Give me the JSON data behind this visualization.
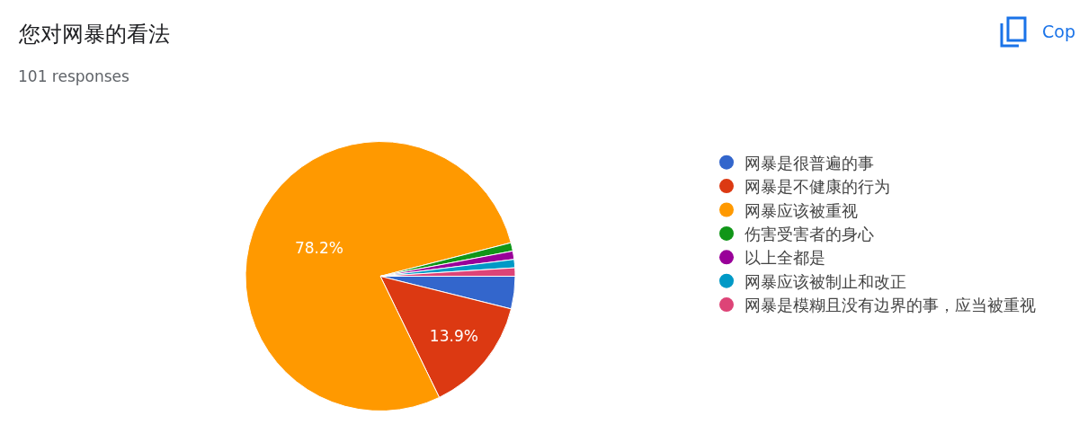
{
  "chart_data": {
    "type": "pie",
    "title": "您对网暴的看法",
    "subtitle": "101 responses",
    "categories": [
      "网暴是很普遍的事",
      "网暴是不健康的行为",
      "网暴应该被重视",
      "伤害受害者的身心",
      "以上全都是",
      "网暴应该被制止和改正",
      "网暴是模糊且没有边界的事，应当被重视"
    ],
    "values": [
      3.9,
      13.9,
      78.2,
      1.0,
      1.0,
      1.0,
      1.0
    ],
    "colors": [
      "#3366cc",
      "#dc3912",
      "#ff9900",
      "#109618",
      "#990099",
      "#0099c6",
      "#dd4477"
    ],
    "value_labels": [
      null,
      "13.9%",
      "78.2%",
      null,
      null,
      null,
      null
    ],
    "legend": "right",
    "annotations": [
      "Cop"
    ]
  }
}
